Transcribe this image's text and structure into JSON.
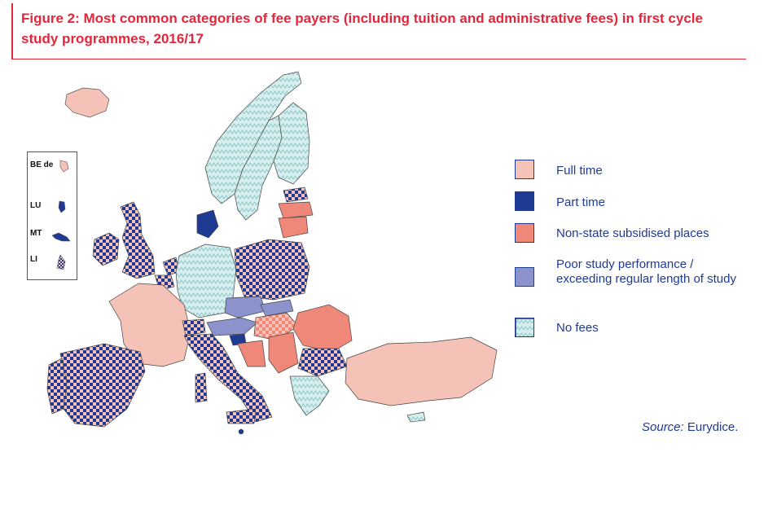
{
  "title": "Figure 2: Most common categories of fee payers (including tuition and administrative fees) in first cycle study programmes, 2016/17",
  "legend": [
    {
      "key": "full-time",
      "label": "Full time",
      "pattern": "checker-pink",
      "color": "#f4c2b6"
    },
    {
      "key": "part-time",
      "label": "Part time",
      "pattern": "solid-blue",
      "color": "#1f3a93"
    },
    {
      "key": "non-state",
      "label": "Non-state subsidised places",
      "pattern": "salmon",
      "color": "#ef8878"
    },
    {
      "key": "poor-performance",
      "label": "Poor study performance / exceeding regular length of study",
      "pattern": "lavender",
      "color": "#8c92cc"
    },
    {
      "key": "no-fees",
      "label": "No fees",
      "pattern": "zigzag-teal",
      "color": "#cfe9ea"
    }
  ],
  "inset_labels": [
    "BE de",
    "LU",
    "MT",
    "LI"
  ],
  "source_prefix": "Source:",
  "source_text": " Eurydice."
}
